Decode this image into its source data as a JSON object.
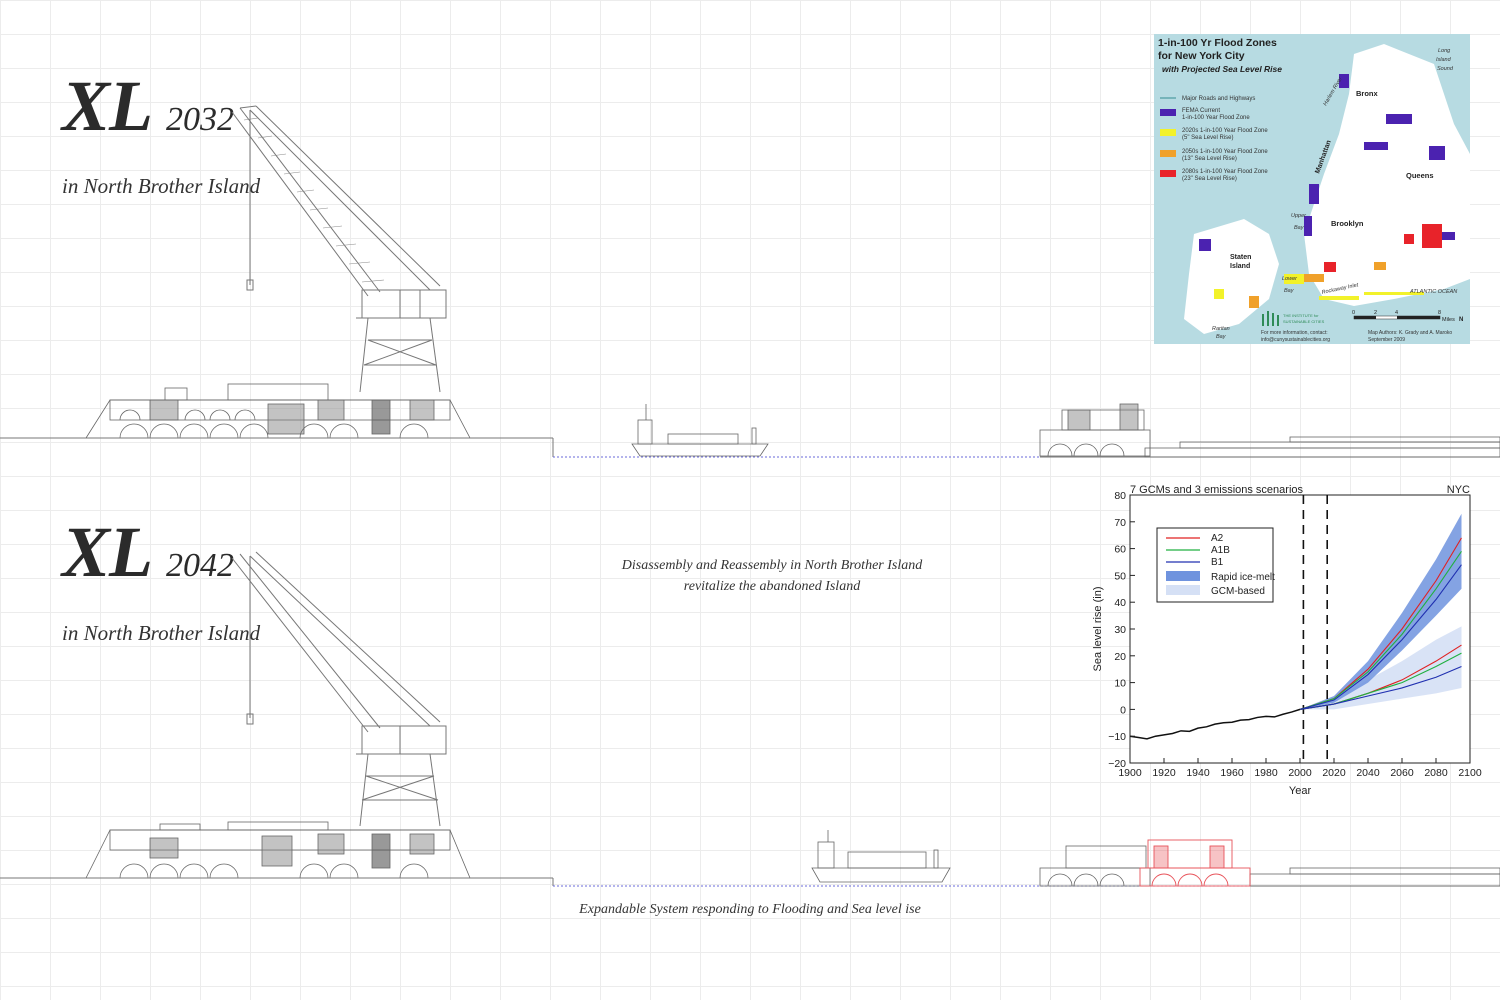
{
  "panel_2032": {
    "label": "XL",
    "year": "2032",
    "location": "in North Brother Island"
  },
  "panel_2042": {
    "label": "XL",
    "year": "2042",
    "location": "in North Brother Island"
  },
  "captions": {
    "disassembly_line1": "Disassembly and Reassembly in North Brother Island",
    "disassembly_line2": "revitalize the abandoned Island",
    "expandable": "Expandable System responding to Flooding and Sea level ise"
  },
  "flood_map": {
    "title_line1": "1-in-100 Yr Flood Zones",
    "title_line2": "for New York City",
    "subtitle": "with Projected Sea Level Rise",
    "legend": [
      {
        "label1": "Major Roads and Highways",
        "label2": "",
        "color": "#4a9aa0"
      },
      {
        "label1": "FEMA Current",
        "label2": "1-in-100 Year Flood Zone",
        "color": "#4b22b0"
      },
      {
        "label1": "2020s 1-in-100 Year Flood Zone",
        "label2": "(5\" Sea Level Rise)",
        "color": "#f2f22a"
      },
      {
        "label1": "2050s 1-in-100 Year Flood Zone",
        "label2": "(13\" Sea Level Rise)",
        "color": "#f0a12a"
      },
      {
        "label1": "2080s 1-in-100 Year Flood Zone",
        "label2": "(23\" Sea Level Rise)",
        "color": "#e8232a"
      }
    ],
    "boroughs": [
      "Bronx",
      "Manhattan",
      "Queens",
      "Brooklyn",
      "Staten",
      "Island"
    ],
    "water_labels": [
      "Long",
      "Island",
      "Sound",
      "Upper",
      "Bay",
      "Lower",
      "Bay",
      "Raritan",
      "Bay",
      "ATLANTIC OCEAN",
      "Harlem River",
      "Rockaway Inlet"
    ],
    "scale_ticks": [
      "0",
      "2",
      "4",
      "8"
    ],
    "scale_unit": "Miles",
    "north": "N",
    "org_line1": "THE INSTITUTE for",
    "org_line2": "SUSTAINABLE CITIES",
    "contact_line1": "For more information, contact:",
    "contact_line2": "info@cunysustainablecities.org",
    "authors_line1": "Map Authors: K. Grady and A. Maroko",
    "authors_line2": "September 2009",
    "colors": {
      "water": "#b7dbe2",
      "land": "#ffffff",
      "fema": "#4b22b0",
      "y2020": "#f2f22a",
      "y2050": "#f0a12a",
      "y2080": "#e8232a"
    }
  },
  "chart_data": {
    "type": "line",
    "title": "7 GCMs and 3 emissions scenarios",
    "title_right": "NYC",
    "xlabel": "Year",
    "ylabel": "Sea level rise (in)",
    "xlim": [
      1900,
      2100
    ],
    "ylim": [
      -20,
      80
    ],
    "xticks": [
      1900,
      1920,
      1940,
      1960,
      1980,
      2000,
      2020,
      2040,
      2060,
      2080,
      2100
    ],
    "yticks": [
      -20,
      -10,
      0,
      10,
      20,
      30,
      40,
      50,
      60,
      70,
      80
    ],
    "legend_position": "top-left",
    "vlines": [
      2002,
      2016
    ],
    "observed": {
      "name": "",
      "x": [
        1900,
        1905,
        1910,
        1915,
        1920,
        1925,
        1930,
        1935,
        1940,
        1945,
        1950,
        1955,
        1960,
        1965,
        1970,
        1975,
        1980,
        1985,
        1990,
        1995,
        2000,
        2003
      ],
      "y": [
        -10,
        -10.5,
        -11,
        -10,
        -9.5,
        -9,
        -8,
        -8.2,
        -7,
        -6.5,
        -5.5,
        -5,
        -4.8,
        -4,
        -3.8,
        -3,
        -2.6,
        -2.8,
        -1.8,
        -1,
        0,
        0.5
      ]
    },
    "series": [
      {
        "name": "A2",
        "color": "#e02020",
        "x": [
          2000,
          2020,
          2040,
          2060,
          2080,
          2095
        ],
        "y": [
          0,
          2,
          6,
          11,
          18,
          24
        ]
      },
      {
        "name": "A1B",
        "color": "#20b040",
        "x": [
          2000,
          2020,
          2040,
          2060,
          2080,
          2095
        ],
        "y": [
          0,
          2,
          6,
          10,
          16,
          21
        ]
      },
      {
        "name": "B1",
        "color": "#2030b0",
        "x": [
          2000,
          2020,
          2040,
          2060,
          2080,
          2095
        ],
        "y": [
          0,
          2,
          5,
          8,
          12,
          16
        ]
      },
      {
        "name": "",
        "color": "#e02020",
        "x": [
          2000,
          2020,
          2040,
          2060,
          2080,
          2095
        ],
        "y": [
          0,
          4,
          15,
          30,
          48,
          64
        ]
      },
      {
        "name": "",
        "color": "#20b040",
        "x": [
          2000,
          2020,
          2040,
          2060,
          2080,
          2095
        ],
        "y": [
          0,
          4,
          14,
          28,
          45,
          59
        ]
      },
      {
        "name": "",
        "color": "#2030b0",
        "x": [
          2000,
          2020,
          2040,
          2060,
          2080,
          2095
        ],
        "y": [
          0,
          3.5,
          13,
          26,
          41,
          54
        ]
      }
    ],
    "bands": [
      {
        "name": "Rapid ice-melt",
        "color": "#6f93de",
        "x": [
          2000,
          2020,
          2040,
          2060,
          2080,
          2095
        ],
        "low": [
          0,
          2.5,
          10,
          22,
          35,
          45
        ],
        "high": [
          0,
          5,
          18,
          36,
          56,
          73
        ]
      },
      {
        "name": "GCM-based",
        "color": "#d5e0f5",
        "x": [
          2000,
          2020,
          2040,
          2060,
          2080,
          2095
        ],
        "low": [
          0,
          0,
          2,
          4,
          6,
          8
        ],
        "high": [
          0,
          4,
          11,
          18,
          26,
          31
        ]
      }
    ]
  }
}
